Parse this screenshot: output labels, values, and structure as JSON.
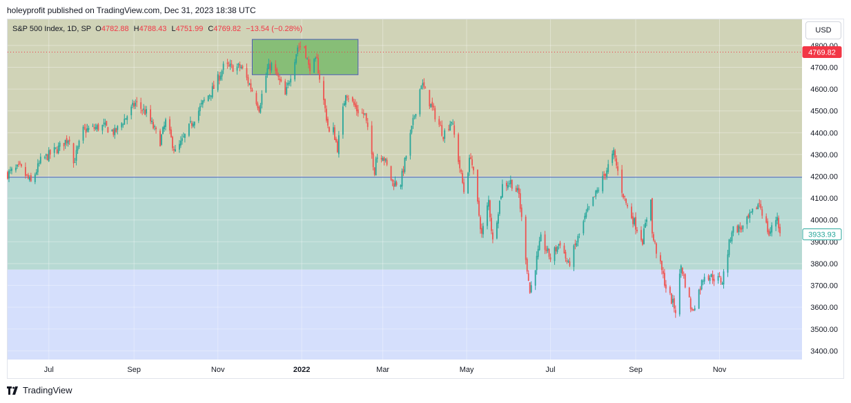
{
  "header": {
    "text": "holeyprofit published on TradingView.com, Dec 31, 2023 18:38 UTC"
  },
  "legend": {
    "symbol": "S&P 500 Index, 1D, SP",
    "o_label": "O",
    "o_value": "4782.88",
    "h_label": "H",
    "h_value": "4788.43",
    "l_label": "L",
    "l_value": "4751.99",
    "c_label": "C",
    "c_value": "4769.82",
    "change": "−13.54 (−0.28%)"
  },
  "currency_button": "USD",
  "footer": {
    "brand": "TradingView",
    "logo_icon": "tradingview-logo-icon"
  },
  "colors": {
    "up": "#26a69a",
    "down": "#ef5350",
    "zone_top": "#d0d3b7",
    "zone_mid": "#b7d9d3",
    "zone_bottom": "#d5dffc",
    "box_fill": "#87be77",
    "box_border": "#4d5ab8",
    "hline": "#3f5ab8",
    "price_line": "#f23645"
  },
  "chart_data": {
    "type": "candlestick",
    "title": "S&P 500 Index, 1D, SP",
    "ylim": [
      3360,
      4920
    ],
    "y_ticks": [
      3400,
      3500,
      3600,
      3700,
      3800,
      3900,
      4000,
      4100,
      4200,
      4300,
      4400,
      4500,
      4600,
      4700,
      4800
    ],
    "y_tick_labels": [
      "3400.00",
      "3500.00",
      "3600.00",
      "3700.00",
      "3800.00",
      "3900.00",
      "4000.00",
      "4100.00",
      "4200.00",
      "4300.00",
      "4400.00",
      "4500.00",
      "4600.00",
      "4700.00",
      "4800.00"
    ],
    "x_range": [
      "2021-06-01",
      "2022-12-31"
    ],
    "x_ticks": [
      {
        "date": "2021-07-01",
        "label": "Jul",
        "bold": false
      },
      {
        "date": "2021-09-01",
        "label": "Sep",
        "bold": false
      },
      {
        "date": "2021-11-01",
        "label": "Nov",
        "bold": false
      },
      {
        "date": "2022-01-01",
        "label": "2022",
        "bold": true
      },
      {
        "date": "2022-03-01",
        "label": "Mar",
        "bold": false
      },
      {
        "date": "2022-05-01",
        "label": "May",
        "bold": false
      },
      {
        "date": "2022-07-01",
        "label": "Jul",
        "bold": false
      },
      {
        "date": "2022-09-01",
        "label": "Sep",
        "bold": false
      },
      {
        "date": "2022-11-01",
        "label": "Nov",
        "bold": false
      }
    ],
    "price_labels": [
      {
        "value": 4769.82,
        "label": "4769.82",
        "style": "filled",
        "color": "#f23645"
      },
      {
        "value": 3933.93,
        "label": "3933.93",
        "style": "outline",
        "color": "#26a69a"
      }
    ],
    "current_price": 4769.82,
    "zones": [
      {
        "from": 4196,
        "to": 4920,
        "color": "#d0d3b7"
      },
      {
        "from": 3772,
        "to": 4196,
        "color": "#b7d9d3"
      },
      {
        "from": 3360,
        "to": 3772,
        "color": "#d5dffc"
      }
    ],
    "horizontal_lines": [
      {
        "value": 4196
      }
    ],
    "rectangle": {
      "start": "2021-11-26",
      "end": "2022-02-11",
      "low": 4666,
      "high": 4828
    },
    "close_path": [
      [
        "2021-06-01",
        4212
      ],
      [
        "2021-06-10",
        4240
      ],
      [
        "2021-06-18",
        4170
      ],
      [
        "2021-06-25",
        4270
      ],
      [
        "2021-07-08",
        4330
      ],
      [
        "2021-07-16",
        4380
      ],
      [
        "2021-07-19",
        4260
      ],
      [
        "2021-07-26",
        4410
      ],
      [
        "2021-08-10",
        4430
      ],
      [
        "2021-08-18",
        4400
      ],
      [
        "2021-08-26",
        4470
      ],
      [
        "2021-09-02",
        4535
      ],
      [
        "2021-09-10",
        4490
      ],
      [
        "2021-09-20",
        4360
      ],
      [
        "2021-09-24",
        4450
      ],
      [
        "2021-10-01",
        4310
      ],
      [
        "2021-10-06",
        4360
      ],
      [
        "2021-10-15",
        4470
      ],
      [
        "2021-10-22",
        4545
      ],
      [
        "2021-10-29",
        4605
      ],
      [
        "2021-11-05",
        4700
      ],
      [
        "2021-11-18",
        4700
      ],
      [
        "2021-11-26",
        4595
      ],
      [
        "2021-12-01",
        4515
      ],
      [
        "2021-12-07",
        4690
      ],
      [
        "2021-12-10",
        4710
      ],
      [
        "2021-12-17",
        4620
      ],
      [
        "2021-12-20",
        4568
      ],
      [
        "2021-12-29",
        4793
      ],
      [
        "2022-01-03",
        4797
      ],
      [
        "2022-01-06",
        4700
      ],
      [
        "2022-01-12",
        4726
      ],
      [
        "2022-01-21",
        4398
      ],
      [
        "2022-01-24",
        4410
      ],
      [
        "2022-01-27",
        4330
      ],
      [
        "2022-02-02",
        4589
      ],
      [
        "2022-02-10",
        4505
      ],
      [
        "2022-02-16",
        4480
      ],
      [
        "2022-02-23",
        4226
      ],
      [
        "2022-02-24",
        4288
      ],
      [
        "2022-03-01",
        4300
      ],
      [
        "2022-03-08",
        4170
      ],
      [
        "2022-03-14",
        4173
      ],
      [
        "2022-03-29",
        4630
      ],
      [
        "2022-04-05",
        4525
      ],
      [
        "2022-04-14",
        4392
      ],
      [
        "2022-04-20",
        4459
      ],
      [
        "2022-04-29",
        4132
      ],
      [
        "2022-05-04",
        4300
      ],
      [
        "2022-05-12",
        3930
      ],
      [
        "2022-05-17",
        4088
      ],
      [
        "2022-05-20",
        3900
      ],
      [
        "2022-05-27",
        4158
      ],
      [
        "2022-06-02",
        4176
      ],
      [
        "2022-06-08",
        4115
      ],
      [
        "2022-06-16",
        3667
      ],
      [
        "2022-06-24",
        3912
      ],
      [
        "2022-07-01",
        3825
      ],
      [
        "2022-07-08",
        3899
      ],
      [
        "2022-07-14",
        3790
      ],
      [
        "2022-07-27",
        4023
      ],
      [
        "2022-08-05",
        4145
      ],
      [
        "2022-08-16",
        4305
      ],
      [
        "2022-08-22",
        4137
      ],
      [
        "2022-08-26",
        4058
      ],
      [
        "2022-09-06",
        3908
      ],
      [
        "2022-09-12",
        4110
      ],
      [
        "2022-09-13",
        3932
      ],
      [
        "2022-09-23",
        3693
      ],
      [
        "2022-09-30",
        3586
      ],
      [
        "2022-10-04",
        3791
      ],
      [
        "2022-10-12",
        3577
      ],
      [
        "2022-10-21",
        3752
      ],
      [
        "2022-11-03",
        3720
      ],
      [
        "2022-11-10",
        3956
      ],
      [
        "2022-11-18",
        3965
      ],
      [
        "2022-11-30",
        4080
      ],
      [
        "2022-12-07",
        3933
      ],
      [
        "2022-12-13",
        4019
      ],
      [
        "2022-12-15",
        3933.93
      ]
    ]
  }
}
